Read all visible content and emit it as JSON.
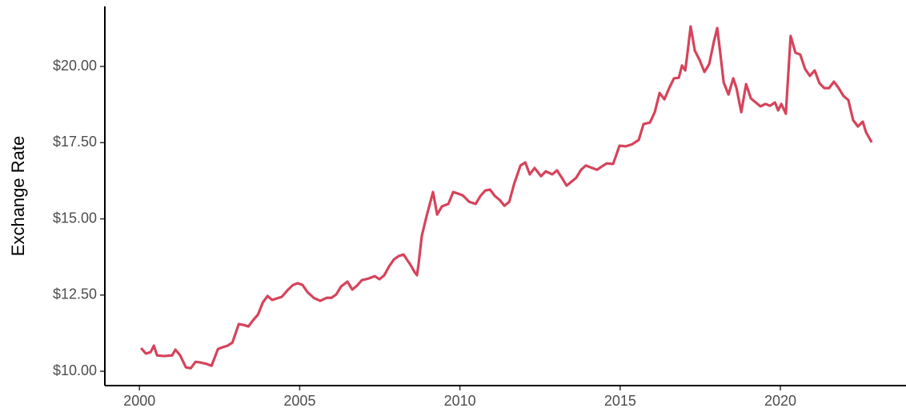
{
  "chart_data": {
    "type": "line",
    "y_label": "Exchange Rate",
    "xlim": [
      1998.92,
      2023.92
    ],
    "ylim": [
      9.53,
      21.97
    ],
    "xticks": [
      2000,
      2005,
      2010,
      2015,
      2020
    ],
    "yticks": [
      {
        "value": 10,
        "label": "$10.00"
      },
      {
        "value": 12.5,
        "label": "$12.50"
      },
      {
        "value": 15,
        "label": "$15.00"
      },
      {
        "value": 17.5,
        "label": "$17.50"
      },
      {
        "value": 20,
        "label": "$20.00"
      }
    ],
    "grid": false,
    "x": [
      2000.05,
      2000.2,
      2000.35,
      2000.45,
      2000.55,
      2000.77,
      2001.02,
      2001.12,
      2001.27,
      2001.45,
      2001.6,
      2001.75,
      2001.9,
      2002.1,
      2002.25,
      2002.45,
      2002.6,
      2002.75,
      2002.9,
      2003.1,
      2003.25,
      2003.4,
      2003.55,
      2003.7,
      2003.85,
      2004.0,
      2004.14,
      2004.29,
      2004.44,
      2004.64,
      2004.79,
      2004.94,
      2005.09,
      2005.24,
      2005.44,
      2005.64,
      2005.84,
      2005.99,
      2006.14,
      2006.29,
      2006.49,
      2006.64,
      2006.79,
      2006.94,
      2007.14,
      2007.34,
      2007.49,
      2007.64,
      2007.79,
      2007.94,
      2008.09,
      2008.24,
      2008.44,
      2008.59,
      2008.66,
      2008.71,
      2008.81,
      2008.96,
      2009.16,
      2009.29,
      2009.44,
      2009.64,
      2009.79,
      2009.94,
      2010.09,
      2010.29,
      2010.49,
      2010.64,
      2010.79,
      2010.94,
      2011.09,
      2011.24,
      2011.39,
      2011.54,
      2011.69,
      2011.89,
      2012.04,
      2012.18,
      2012.33,
      2012.53,
      2012.68,
      2012.88,
      2013.03,
      2013.18,
      2013.33,
      2013.48,
      2013.63,
      2013.78,
      2013.93,
      2014.13,
      2014.28,
      2014.43,
      2014.58,
      2014.78,
      2014.98,
      2015.18,
      2015.38,
      2015.58,
      2015.73,
      2015.93,
      2016.08,
      2016.23,
      2016.38,
      2016.53,
      2016.68,
      2016.83,
      2016.93,
      2017.03,
      2017.08,
      2017.2,
      2017.33,
      2017.48,
      2017.63,
      2017.78,
      2017.93,
      2018.03,
      2018.13,
      2018.23,
      2018.38,
      2018.53,
      2018.63,
      2018.78,
      2018.93,
      2019.08,
      2019.23,
      2019.38,
      2019.53,
      2019.68,
      2019.83,
      2019.93,
      2020.03,
      2020.17,
      2020.32,
      2020.47,
      2020.62,
      2020.77,
      2020.92,
      2021.07,
      2021.22,
      2021.37,
      2021.52,
      2021.67,
      2021.82,
      2021.97,
      2022.12,
      2022.27,
      2022.42,
      2022.57,
      2022.67,
      2022.85
    ],
    "series": [
      {
        "color": "#d6435b",
        "values": [
          10.76,
          10.58,
          10.63,
          10.84,
          10.52,
          10.5,
          10.52,
          10.71,
          10.52,
          10.13,
          10.1,
          10.31,
          10.29,
          10.24,
          10.18,
          10.73,
          10.79,
          10.84,
          10.94,
          11.55,
          11.52,
          11.47,
          11.68,
          11.86,
          12.26,
          12.47,
          12.34,
          12.39,
          12.44,
          12.68,
          12.83,
          12.89,
          12.83,
          12.6,
          12.41,
          12.31,
          12.41,
          12.41,
          12.52,
          12.78,
          12.94,
          12.68,
          12.81,
          12.99,
          13.04,
          13.12,
          13.02,
          13.15,
          13.44,
          13.67,
          13.78,
          13.83,
          13.52,
          13.25,
          13.15,
          13.52,
          14.44,
          15.09,
          15.88,
          15.14,
          15.41,
          15.49,
          15.88,
          15.83,
          15.77,
          15.56,
          15.49,
          15.75,
          15.93,
          15.96,
          15.75,
          15.62,
          15.43,
          15.56,
          16.14,
          16.75,
          16.85,
          16.46,
          16.67,
          16.4,
          16.56,
          16.46,
          16.59,
          16.35,
          16.09,
          16.22,
          16.35,
          16.61,
          16.75,
          16.67,
          16.61,
          16.72,
          16.82,
          16.8,
          17.4,
          17.38,
          17.45,
          17.59,
          18.11,
          18.16,
          18.5,
          19.13,
          18.92,
          19.29,
          19.61,
          19.63,
          20.03,
          19.87,
          20.26,
          21.31,
          20.52,
          20.21,
          19.82,
          20.08,
          20.84,
          21.26,
          20.39,
          19.48,
          19.08,
          19.61,
          19.29,
          18.5,
          19.42,
          18.95,
          18.82,
          18.69,
          18.77,
          18.71,
          18.82,
          18.56,
          18.77,
          18.45,
          21.0,
          20.45,
          20.39,
          19.92,
          19.69,
          19.87,
          19.45,
          19.29,
          19.29,
          19.5,
          19.29,
          19.03,
          18.9,
          18.24,
          18.03,
          18.19,
          17.85,
          17.51
        ]
      }
    ]
  }
}
